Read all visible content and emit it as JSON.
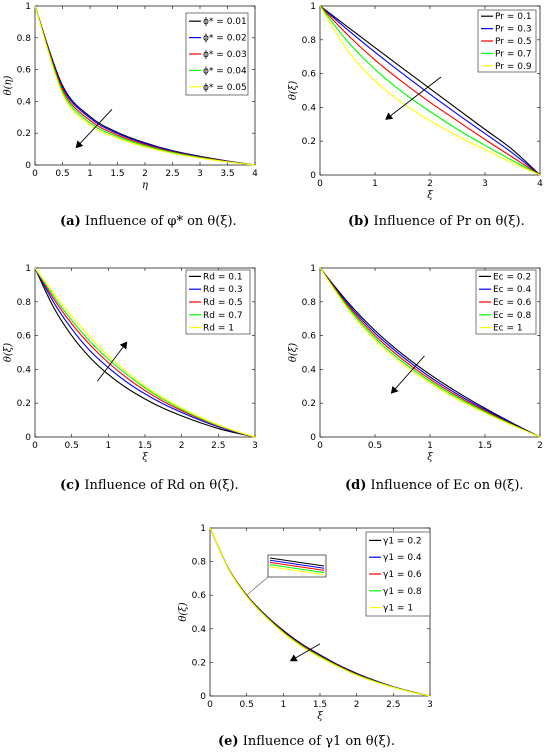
{
  "chart_data": [
    {
      "id": "a",
      "type": "line",
      "caption_label": "(a)",
      "caption_text": "Influence of φ* on θ(ξ).",
      "xlabel": "η",
      "ylabel": "θ(η)",
      "xlim": [
        0,
        4
      ],
      "ylim": [
        0,
        1
      ],
      "xticks": [
        "0",
        "0.5",
        "1",
        "1.5",
        "2",
        "2.5",
        "3",
        "3.5",
        "4"
      ],
      "yticks": [
        "0",
        "0.2",
        "0.4",
        "0.6",
        "0.8",
        "1"
      ],
      "legend_position": "top-right",
      "arrow": {
        "from": [
          1.4,
          0.35
        ],
        "to": [
          0.75,
          0.11
        ]
      },
      "series": [
        {
          "name": "ϕ* = 0.01",
          "color": "#000000",
          "x": [
            0,
            0.5,
            1,
            1.5,
            2,
            2.5,
            3,
            3.5,
            4
          ],
          "values": [
            1,
            0.5,
            0.305,
            0.205,
            0.14,
            0.09,
            0.055,
            0.025,
            0
          ]
        },
        {
          "name": "ϕ* = 0.02",
          "color": "#0000ff",
          "x": [
            0,
            0.5,
            1,
            1.5,
            2,
            2.5,
            3,
            3.5,
            4
          ],
          "values": [
            1,
            0.49,
            0.295,
            0.198,
            0.135,
            0.087,
            0.052,
            0.023,
            0
          ]
        },
        {
          "name": "ϕ* = 0.03",
          "color": "#ff0000",
          "x": [
            0,
            0.5,
            1,
            1.5,
            2,
            2.5,
            3,
            3.5,
            4
          ],
          "values": [
            1,
            0.475,
            0.28,
            0.188,
            0.128,
            0.082,
            0.049,
            0.022,
            0
          ]
        },
        {
          "name": "ϕ* = 0.04",
          "color": "#00ff00",
          "x": [
            0,
            0.5,
            1,
            1.5,
            2,
            2.5,
            3,
            3.5,
            4
          ],
          "values": [
            1,
            0.46,
            0.265,
            0.178,
            0.121,
            0.078,
            0.046,
            0.02,
            0
          ]
        },
        {
          "name": "ϕ* = 0.05",
          "color": "#ffff00",
          "x": [
            0,
            0.5,
            1,
            1.5,
            2,
            2.5,
            3,
            3.5,
            4
          ],
          "values": [
            1,
            0.445,
            0.25,
            0.168,
            0.114,
            0.073,
            0.043,
            0.019,
            0
          ]
        }
      ]
    },
    {
      "id": "b",
      "type": "line",
      "caption_label": "(b)",
      "caption_text": "Influence of Pr on θ(ξ).",
      "xlabel": "ξ",
      "ylabel": "θ(ξ)",
      "xlim": [
        0,
        4
      ],
      "ylim": [
        0,
        1
      ],
      "xticks": [
        "0",
        "1",
        "2",
        "3",
        "4"
      ],
      "yticks": [
        "0",
        "0.2",
        "0.4",
        "0.6",
        "0.8",
        "1"
      ],
      "legend_position": "top-right",
      "arrow": {
        "from": [
          2.2,
          0.58
        ],
        "to": [
          1.2,
          0.33
        ]
      },
      "series": [
        {
          "name": "Pr = 0.1",
          "color": "#000000",
          "x": [
            0,
            0.5,
            1,
            1.5,
            2,
            2.5,
            3,
            3.5,
            4
          ],
          "values": [
            1,
            0.877,
            0.754,
            0.632,
            0.511,
            0.39,
            0.27,
            0.15,
            0
          ]
        },
        {
          "name": "Pr = 0.3",
          "color": "#0000ff",
          "x": [
            0,
            0.5,
            1,
            1.5,
            2,
            2.5,
            3,
            3.5,
            4
          ],
          "values": [
            1,
            0.86,
            0.727,
            0.6,
            0.478,
            0.36,
            0.245,
            0.13,
            0
          ]
        },
        {
          "name": "Pr = 0.5",
          "color": "#ff0000",
          "x": [
            0,
            0.5,
            1,
            1.5,
            2,
            2.5,
            3,
            3.5,
            4
          ],
          "values": [
            1,
            0.83,
            0.68,
            0.55,
            0.43,
            0.32,
            0.21,
            0.105,
            0
          ]
        },
        {
          "name": "Pr = 0.7",
          "color": "#00ff00",
          "x": [
            0,
            0.5,
            1,
            1.5,
            2,
            2.5,
            3,
            3.5,
            4
          ],
          "values": [
            1,
            0.79,
            0.625,
            0.49,
            0.375,
            0.27,
            0.175,
            0.085,
            0
          ]
        },
        {
          "name": "Pr = 0.9",
          "color": "#ffff00",
          "x": [
            0,
            0.5,
            1,
            1.5,
            2,
            2.5,
            3,
            3.5,
            4
          ],
          "values": [
            1,
            0.735,
            0.555,
            0.425,
            0.32,
            0.23,
            0.15,
            0.07,
            0
          ]
        }
      ]
    },
    {
      "id": "c",
      "type": "line",
      "caption_label": "(c)",
      "caption_text": "Influence of Rd on θ(ξ).",
      "xlabel": "ξ",
      "ylabel": "θ(ξ)",
      "xlim": [
        0,
        3
      ],
      "ylim": [
        0,
        1
      ],
      "xticks": [
        "0",
        "0.5",
        "1",
        "1.5",
        "2",
        "2.5",
        "3"
      ],
      "yticks": [
        "0",
        "0.2",
        "0.4",
        "0.6",
        "0.8",
        "1"
      ],
      "legend_position": "top-right",
      "arrow": {
        "from": [
          0.85,
          0.33
        ],
        "to": [
          1.25,
          0.56
        ]
      },
      "series": [
        {
          "name": "Rd = 0.1",
          "color": "#000000",
          "x": [
            0,
            0.25,
            0.5,
            0.75,
            1,
            1.25,
            1.5,
            1.75,
            2,
            2.25,
            2.5,
            2.75,
            3
          ],
          "values": [
            1,
            0.77,
            0.6,
            0.47,
            0.37,
            0.29,
            0.225,
            0.17,
            0.125,
            0.085,
            0.05,
            0.023,
            0
          ]
        },
        {
          "name": "Rd = 0.3",
          "color": "#0000ff",
          "x": [
            0,
            0.25,
            0.5,
            0.75,
            1,
            1.25,
            1.5,
            1.75,
            2,
            2.25,
            2.5,
            2.75,
            3
          ],
          "values": [
            1,
            0.8,
            0.64,
            0.51,
            0.41,
            0.325,
            0.255,
            0.195,
            0.145,
            0.1,
            0.06,
            0.027,
            0
          ]
        },
        {
          "name": "Rd = 0.5",
          "color": "#ff0000",
          "x": [
            0,
            0.25,
            0.5,
            0.75,
            1,
            1.25,
            1.5,
            1.75,
            2,
            2.25,
            2.5,
            2.75,
            3
          ],
          "values": [
            1,
            0.82,
            0.67,
            0.545,
            0.44,
            0.35,
            0.275,
            0.21,
            0.155,
            0.107,
            0.065,
            0.03,
            0
          ]
        },
        {
          "name": "Rd = 0.7",
          "color": "#00ff00",
          "x": [
            0,
            0.25,
            0.5,
            0.75,
            1,
            1.25,
            1.5,
            1.75,
            2,
            2.25,
            2.5,
            2.75,
            3
          ],
          "values": [
            1,
            0.835,
            0.69,
            0.565,
            0.46,
            0.37,
            0.29,
            0.222,
            0.163,
            0.112,
            0.068,
            0.031,
            0
          ]
        },
        {
          "name": "Rd =   1",
          "color": "#ffff00",
          "x": [
            0,
            0.25,
            0.5,
            0.75,
            1,
            1.25,
            1.5,
            1.75,
            2,
            2.25,
            2.5,
            2.75,
            3
          ],
          "values": [
            1,
            0.85,
            0.715,
            0.59,
            0.48,
            0.385,
            0.3,
            0.23,
            0.17,
            0.117,
            0.071,
            0.033,
            0
          ]
        }
      ]
    },
    {
      "id": "d",
      "type": "line",
      "caption_label": "(d)",
      "caption_text": "Influence of Ec on θ(ξ).",
      "xlabel": "ξ",
      "ylabel": "θ(ξ)",
      "xlim": [
        0,
        2
      ],
      "ylim": [
        0,
        1
      ],
      "xticks": [
        "0",
        "0.5",
        "1",
        "1.5",
        "2"
      ],
      "yticks": [
        "0",
        "0.2",
        "0.4",
        "0.6",
        "0.8",
        "1"
      ],
      "legend_position": "top-right",
      "arrow": {
        "from": [
          0.95,
          0.48
        ],
        "to": [
          0.65,
          0.26
        ]
      },
      "series": [
        {
          "name": "Ec = 0.2",
          "color": "#000000",
          "x": [
            0,
            0.25,
            0.5,
            0.75,
            1,
            1.25,
            1.5,
            1.75,
            2
          ],
          "values": [
            1,
            0.8,
            0.63,
            0.49,
            0.37,
            0.265,
            0.17,
            0.082,
            0
          ]
        },
        {
          "name": "Ec = 0.4",
          "color": "#0000ff",
          "x": [
            0,
            0.25,
            0.5,
            0.75,
            1,
            1.25,
            1.5,
            1.75,
            2
          ],
          "values": [
            1,
            0.79,
            0.615,
            0.475,
            0.355,
            0.253,
            0.162,
            0.078,
            0
          ]
        },
        {
          "name": "Ec = 0.6",
          "color": "#ff0000",
          "x": [
            0,
            0.25,
            0.5,
            0.75,
            1,
            1.25,
            1.5,
            1.75,
            2
          ],
          "values": [
            1,
            0.78,
            0.6,
            0.46,
            0.342,
            0.242,
            0.155,
            0.074,
            0
          ]
        },
        {
          "name": "Ec = 0.8",
          "color": "#00ff00",
          "x": [
            0,
            0.25,
            0.5,
            0.75,
            1,
            1.25,
            1.5,
            1.75,
            2
          ],
          "values": [
            1,
            0.77,
            0.585,
            0.445,
            0.33,
            0.232,
            0.148,
            0.071,
            0
          ]
        },
        {
          "name": "Ec =   1",
          "color": "#ffff00",
          "x": [
            0,
            0.25,
            0.5,
            0.75,
            1,
            1.25,
            1.5,
            1.75,
            2
          ],
          "values": [
            1,
            0.76,
            0.57,
            0.43,
            0.318,
            0.222,
            0.142,
            0.068,
            0
          ]
        }
      ]
    },
    {
      "id": "e",
      "type": "line",
      "caption_label": "(e)",
      "caption_text": "Influence of γ1 on θ(ξ).",
      "xlabel": "ξ",
      "ylabel": "θ(ξ)",
      "xlim": [
        0,
        3
      ],
      "ylim": [
        0,
        1
      ],
      "xticks": [
        "0",
        "0.5",
        "1",
        "1.5",
        "2",
        "2.5",
        "3"
      ],
      "yticks": [
        "0",
        "0.2",
        "0.4",
        "0.6",
        "0.8",
        "1"
      ],
      "legend_position": "top-right",
      "inset": true,
      "arrow": {
        "from": [
          1.5,
          0.31
        ],
        "to": [
          1.1,
          0.21
        ]
      },
      "series": [
        {
          "name": "γ1 = 0.2",
          "color": "#000000",
          "x": [
            0,
            0.25,
            0.5,
            0.75,
            1,
            1.25,
            1.5,
            1.75,
            2,
            2.25,
            2.5,
            2.75,
            3
          ],
          "values": [
            1,
            0.76,
            0.6,
            0.485,
            0.39,
            0.31,
            0.245,
            0.185,
            0.135,
            0.092,
            0.055,
            0.025,
            0
          ]
        },
        {
          "name": "γ1 = 0.4",
          "color": "#0000ff",
          "x": [
            0,
            0.25,
            0.5,
            0.75,
            1,
            1.25,
            1.5,
            1.75,
            2,
            2.25,
            2.5,
            2.75,
            3
          ],
          "values": [
            1,
            0.759,
            0.598,
            0.482,
            0.386,
            0.306,
            0.241,
            0.182,
            0.132,
            0.09,
            0.054,
            0.024,
            0
          ]
        },
        {
          "name": "γ1 = 0.6",
          "color": "#ff0000",
          "x": [
            0,
            0.25,
            0.5,
            0.75,
            1,
            1.25,
            1.5,
            1.75,
            2,
            2.25,
            2.5,
            2.75,
            3
          ],
          "values": [
            1,
            0.758,
            0.596,
            0.479,
            0.382,
            0.302,
            0.237,
            0.179,
            0.129,
            0.088,
            0.053,
            0.024,
            0
          ]
        },
        {
          "name": "γ1 = 0.8",
          "color": "#00ff00",
          "x": [
            0,
            0.25,
            0.5,
            0.75,
            1,
            1.25,
            1.5,
            1.75,
            2,
            2.25,
            2.5,
            2.75,
            3
          ],
          "values": [
            1,
            0.757,
            0.594,
            0.476,
            0.378,
            0.298,
            0.233,
            0.176,
            0.126,
            0.086,
            0.052,
            0.023,
            0
          ]
        },
        {
          "name": "γ1 =   1",
          "color": "#ffff00",
          "x": [
            0,
            0.25,
            0.5,
            0.75,
            1,
            1.25,
            1.5,
            1.75,
            2,
            2.25,
            2.5,
            2.75,
            3
          ],
          "values": [
            1,
            0.756,
            0.592,
            0.473,
            0.374,
            0.294,
            0.229,
            0.173,
            0.123,
            0.084,
            0.051,
            0.023,
            0
          ]
        }
      ]
    }
  ]
}
